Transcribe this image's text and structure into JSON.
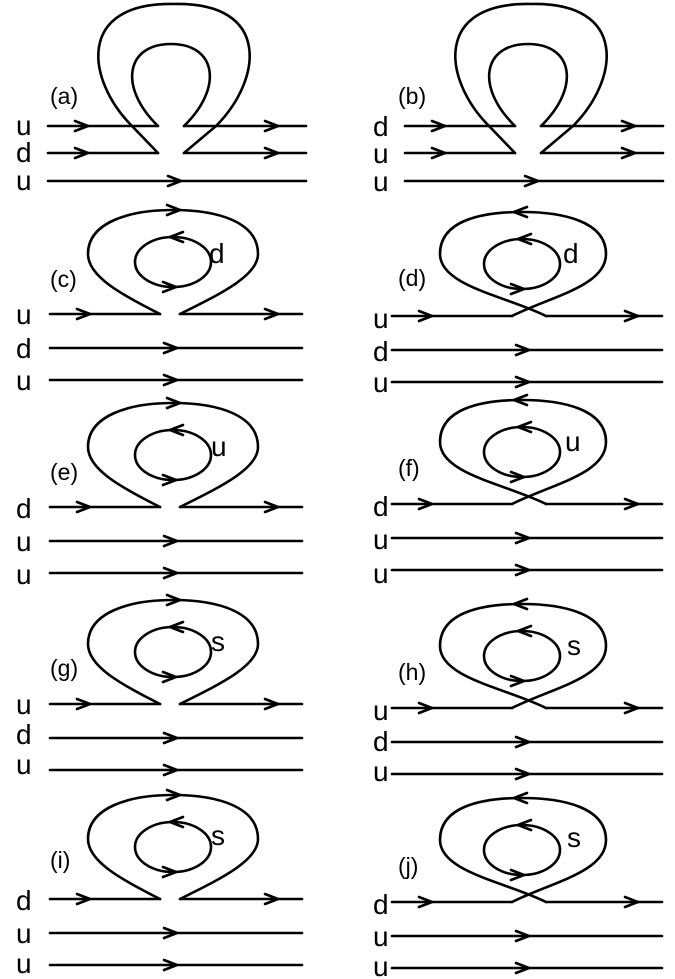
{
  "panels": [
    {
      "label": "(a)",
      "quarks": [
        "u",
        "d",
        "u"
      ],
      "loop": "",
      "variant": "ab"
    },
    {
      "label": "(b)",
      "quarks": [
        "d",
        "u",
        "u"
      ],
      "loop": "",
      "variant": "ab"
    },
    {
      "label": "(c)",
      "quarks": [
        "u",
        "d",
        "u"
      ],
      "loop": "d",
      "variant": "open"
    },
    {
      "label": "(d)",
      "quarks": [
        "u",
        "d",
        "u"
      ],
      "loop": "d",
      "variant": "cross"
    },
    {
      "label": "(e)",
      "quarks": [
        "d",
        "u",
        "u"
      ],
      "loop": "u",
      "variant": "open"
    },
    {
      "label": "(f)",
      "quarks": [
        "d",
        "u",
        "u"
      ],
      "loop": "u",
      "variant": "cross"
    },
    {
      "label": "(g)",
      "quarks": [
        "u",
        "d",
        "u"
      ],
      "loop": "s",
      "variant": "open"
    },
    {
      "label": "(h)",
      "quarks": [
        "u",
        "d",
        "u"
      ],
      "loop": "s",
      "variant": "cross"
    },
    {
      "label": "(i)",
      "quarks": [
        "d",
        "u",
        "u"
      ],
      "loop": "s",
      "variant": "open"
    },
    {
      "label": "(j)",
      "quarks": [
        "d",
        "u",
        "u"
      ],
      "loop": "s",
      "variant": "cross"
    }
  ]
}
